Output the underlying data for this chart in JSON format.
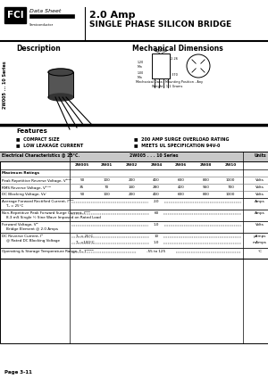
{
  "title_line1": "2.0 Amp",
  "title_line2": "SINGLE PHASE SILICON BRIDGE",
  "logo_text": "FCI",
  "datasheet_text": "Data Sheet",
  "semiconductor_text": "Semiconductor",
  "series_label": "2W005 ... 10 Series",
  "description_title": "Description",
  "mech_title": "Mechanical Dimensions",
  "features_title": "Features",
  "col_headers": [
    "2W005",
    "2W01",
    "2W02",
    "2W04",
    "2W06",
    "2W08",
    "2W10"
  ],
  "page_text": "Page 3-11",
  "bg_color": "#ffffff"
}
